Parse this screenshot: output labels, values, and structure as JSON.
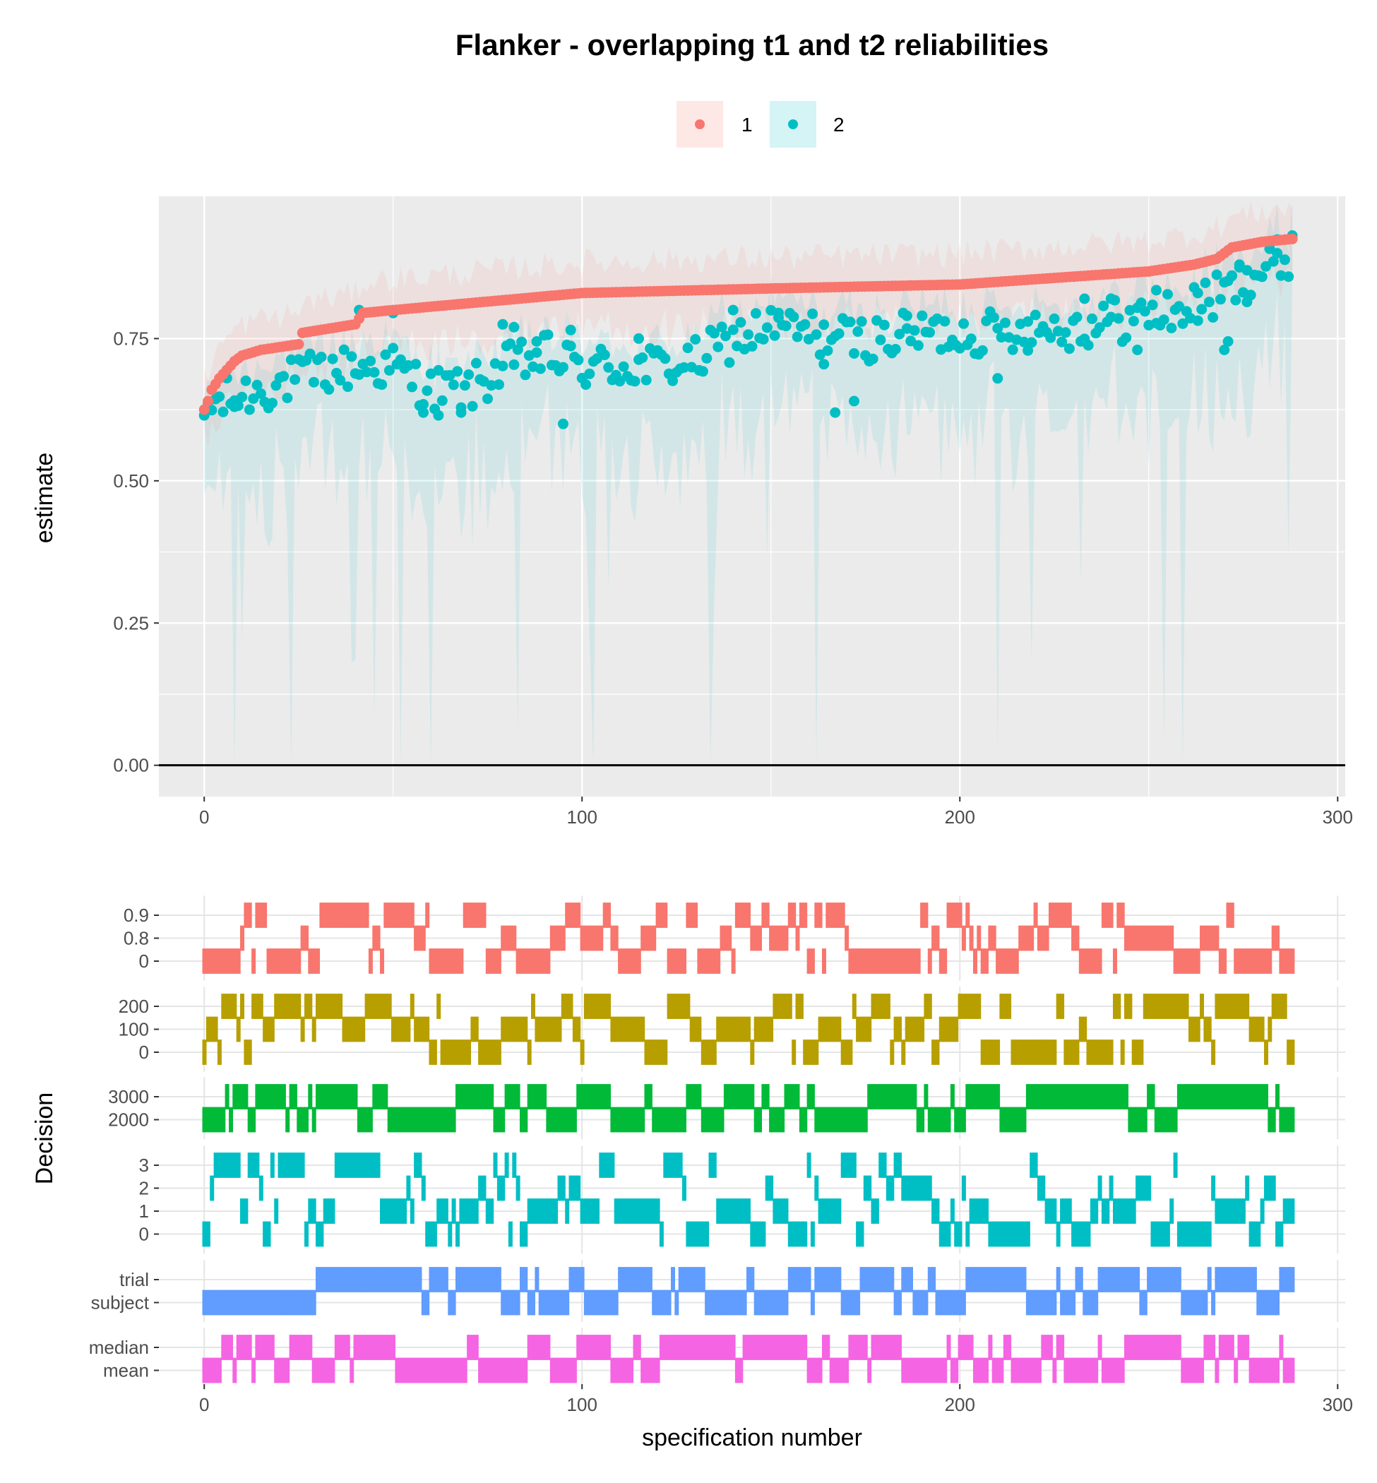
{
  "chart_data": [
    {
      "type": "scatter",
      "title": "Flanker - overlapping t1 and t2 reliabilities",
      "xlabel": "",
      "ylabel": "estimate",
      "xlim": [
        -12,
        302
      ],
      "ylim": [
        -0.055,
        1.0
      ],
      "x_ticks": [
        0,
        100,
        200,
        300
      ],
      "y_ticks": [
        0.0,
        0.25,
        0.5,
        0.75
      ],
      "y_tick_labels": [
        "0.00",
        "0.25",
        "0.50",
        "0.75"
      ],
      "grid": true,
      "hline_at": 0,
      "legend": {
        "position": "top",
        "entries": [
          {
            "label": "1",
            "color": "#F8766D"
          },
          {
            "label": "2",
            "color": "#00BFC4"
          }
        ]
      },
      "series": [
        {
          "name": "1",
          "color": "#F8766D",
          "description": "sorted estimates with ribbon",
          "knots_x": [
            0,
            1,
            2,
            4,
            6,
            8,
            10,
            15,
            20,
            25,
            26,
            40,
            42,
            50,
            100,
            150,
            200,
            250,
            262,
            268,
            272,
            280,
            288
          ],
          "knots_y": [
            0.625,
            0.64,
            0.66,
            0.68,
            0.695,
            0.71,
            0.72,
            0.73,
            0.735,
            0.74,
            0.76,
            0.775,
            0.795,
            0.8,
            0.83,
            0.838,
            0.845,
            0.868,
            0.88,
            0.89,
            0.91,
            0.92,
            0.925
          ],
          "ribbon_lower_offset": 0.1,
          "ribbon_upper_offset": 0.06
        },
        {
          "name": "2",
          "color": "#00BFC4",
          "description": "t2 estimates",
          "anchor_x": [
            0,
            10,
            20,
            30,
            40,
            50,
            60,
            70,
            80,
            90,
            100,
            110,
            120,
            130,
            140,
            150,
            160,
            170,
            180,
            190,
            200,
            210,
            220,
            230,
            240,
            250,
            260,
            270,
            280,
            288
          ],
          "anchor_y": [
            0.63,
            0.65,
            0.67,
            0.69,
            0.7,
            0.7,
            0.66,
            0.66,
            0.7,
            0.72,
            0.7,
            0.7,
            0.7,
            0.71,
            0.75,
            0.77,
            0.76,
            0.75,
            0.75,
            0.76,
            0.76,
            0.76,
            0.77,
            0.77,
            0.78,
            0.79,
            0.8,
            0.83,
            0.87,
            0.9
          ],
          "extra_points": [
            [
              8,
              0.63
            ],
            [
              41,
              0.8
            ],
            [
              50,
              0.795
            ],
            [
              58,
              0.62
            ],
            [
              62,
              0.615
            ],
            [
              68,
              0.62
            ],
            [
              79,
              0.775
            ],
            [
              82,
              0.77
            ],
            [
              88,
              0.745
            ],
            [
              95,
              0.6
            ],
            [
              97,
              0.765
            ],
            [
              115,
              0.75
            ],
            [
              140,
              0.8
            ],
            [
              152,
              0.795
            ],
            [
              164,
              0.705
            ],
            [
              167,
              0.62
            ],
            [
              172,
              0.64
            ],
            [
              186,
              0.79
            ],
            [
              190,
              0.79
            ],
            [
              210,
              0.68
            ],
            [
              218,
              0.78
            ],
            [
              233,
              0.82
            ],
            [
              240,
              0.82
            ],
            [
              247,
              0.73
            ],
            [
              252,
              0.835
            ],
            [
              263,
              0.83
            ],
            [
              270,
              0.73
            ],
            [
              271,
              0.745
            ],
            [
              272,
              0.86
            ],
            [
              274,
              0.88
            ],
            [
              276,
              0.87
            ],
            [
              284,
              0.9
            ]
          ],
          "ribbon_lower_offset": 0.25,
          "ribbon_upper_offset": 0.05
        }
      ]
    },
    {
      "type": "heatmap",
      "title": "",
      "xlabel": "specification number",
      "ylabel": "Decision",
      "xlim": [
        -12,
        302
      ],
      "x_ticks": [
        0,
        100,
        200,
        300
      ],
      "n_specifications": 289,
      "panels": [
        {
          "color": "#F8766D",
          "levels": [
            "0",
            "0.8",
            "0.9"
          ],
          "display_levels": [
            "0.9",
            "0.8",
            "0"
          ]
        },
        {
          "color": "#B79F00",
          "levels": [
            "0",
            "100",
            "200"
          ],
          "display_levels": [
            "200",
            "100",
            "0"
          ]
        },
        {
          "color": "#00BA38",
          "levels": [
            "2000",
            "3000"
          ],
          "display_levels": [
            "3000",
            "2000"
          ]
        },
        {
          "color": "#00BFC4",
          "levels": [
            "0",
            "1",
            "2",
            "3"
          ],
          "display_levels": [
            "3",
            "2",
            "1",
            "0"
          ]
        },
        {
          "color": "#619CFF",
          "levels": [
            "subject",
            "trial"
          ],
          "display_levels": [
            "trial",
            "subject"
          ]
        },
        {
          "color": "#F564E3",
          "levels": [
            "mean",
            "median"
          ],
          "display_levels": [
            "median",
            "mean"
          ]
        }
      ]
    }
  ]
}
